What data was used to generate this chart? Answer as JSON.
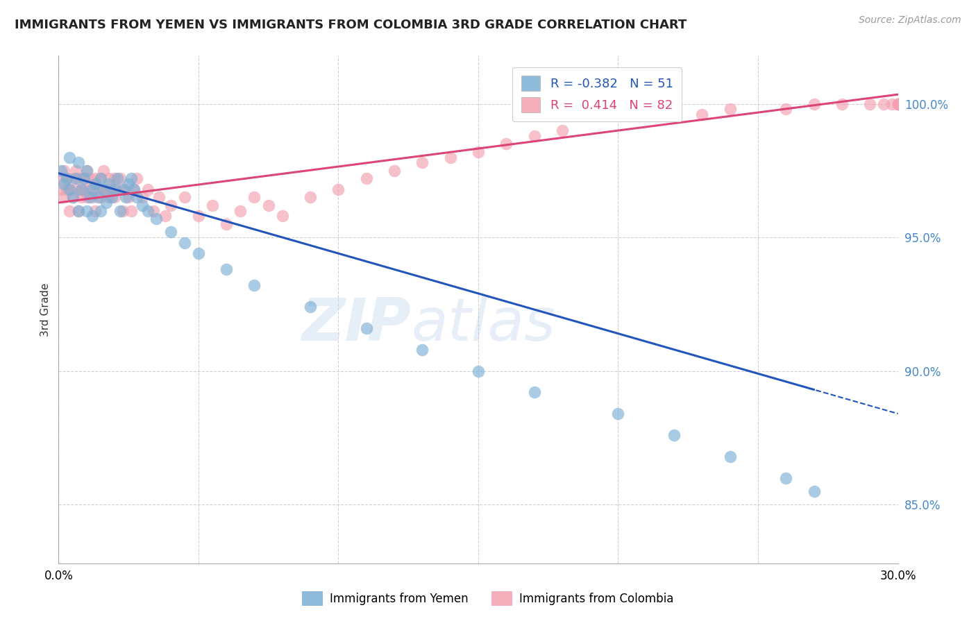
{
  "title": "IMMIGRANTS FROM YEMEN VS IMMIGRANTS FROM COLOMBIA 3RD GRADE CORRELATION CHART",
  "source": "Source: ZipAtlas.com",
  "ylabel": "3rd Grade",
  "xlim": [
    0.0,
    0.3
  ],
  "ylim": [
    0.828,
    1.018
  ],
  "yticks": [
    0.85,
    0.9,
    0.95,
    1.0
  ],
  "ytick_labels": [
    "85.0%",
    "90.0%",
    "95.0%",
    "100.0%"
  ],
  "xticks": [
    0.0,
    0.05,
    0.1,
    0.15,
    0.2,
    0.25,
    0.3
  ],
  "xtick_labels": [
    "0.0%",
    "",
    "",
    "",
    "",
    "",
    "30.0%"
  ],
  "blue_color": "#7bafd4",
  "pink_color": "#f4a0b0",
  "blue_line_color": "#2255bb",
  "pink_line_color": "#dd4477",
  "legend_blue_R": "-0.382",
  "legend_blue_N": "51",
  "legend_pink_R": "0.414",
  "legend_pink_N": "82",
  "blue_scatter_x": [
    0.001,
    0.002,
    0.003,
    0.004,
    0.004,
    0.005,
    0.006,
    0.007,
    0.007,
    0.008,
    0.009,
    0.01,
    0.01,
    0.011,
    0.012,
    0.012,
    0.013,
    0.014,
    0.015,
    0.015,
    0.016,
    0.017,
    0.018,
    0.019,
    0.02,
    0.021,
    0.022,
    0.023,
    0.024,
    0.025,
    0.026,
    0.027,
    0.028,
    0.03,
    0.032,
    0.035,
    0.04,
    0.045,
    0.05,
    0.06,
    0.07,
    0.09,
    0.11,
    0.13,
    0.15,
    0.17,
    0.2,
    0.22,
    0.24,
    0.26,
    0.27
  ],
  "blue_scatter_y": [
    0.975,
    0.97,
    0.972,
    0.968,
    0.98,
    0.965,
    0.972,
    0.978,
    0.96,
    0.968,
    0.972,
    0.975,
    0.96,
    0.965,
    0.968,
    0.958,
    0.97,
    0.965,
    0.972,
    0.96,
    0.968,
    0.963,
    0.97,
    0.965,
    0.968,
    0.972,
    0.96,
    0.968,
    0.965,
    0.97,
    0.972,
    0.968,
    0.965,
    0.962,
    0.96,
    0.957,
    0.952,
    0.948,
    0.944,
    0.938,
    0.932,
    0.924,
    0.916,
    0.908,
    0.9,
    0.892,
    0.884,
    0.876,
    0.868,
    0.86,
    0.855
  ],
  "pink_scatter_x": [
    0.001,
    0.001,
    0.002,
    0.002,
    0.003,
    0.003,
    0.004,
    0.004,
    0.005,
    0.005,
    0.006,
    0.006,
    0.007,
    0.007,
    0.008,
    0.008,
    0.009,
    0.009,
    0.01,
    0.01,
    0.011,
    0.011,
    0.012,
    0.012,
    0.013,
    0.013,
    0.014,
    0.015,
    0.015,
    0.016,
    0.016,
    0.017,
    0.018,
    0.018,
    0.019,
    0.02,
    0.02,
    0.021,
    0.022,
    0.023,
    0.024,
    0.025,
    0.026,
    0.027,
    0.028,
    0.03,
    0.032,
    0.034,
    0.036,
    0.038,
    0.04,
    0.045,
    0.05,
    0.055,
    0.06,
    0.065,
    0.07,
    0.075,
    0.08,
    0.09,
    0.1,
    0.11,
    0.12,
    0.13,
    0.14,
    0.15,
    0.16,
    0.17,
    0.18,
    0.21,
    0.23,
    0.24,
    0.26,
    0.27,
    0.28,
    0.29,
    0.295,
    0.298,
    0.3,
    0.3,
    0.3,
    0.3
  ],
  "pink_scatter_y": [
    0.972,
    0.968,
    0.975,
    0.965,
    0.968,
    0.972,
    0.968,
    0.96,
    0.972,
    0.965,
    0.975,
    0.968,
    0.972,
    0.96,
    0.968,
    0.965,
    0.972,
    0.968,
    0.975,
    0.965,
    0.968,
    0.972,
    0.968,
    0.965,
    0.972,
    0.96,
    0.968,
    0.972,
    0.965,
    0.968,
    0.975,
    0.968,
    0.972,
    0.965,
    0.968,
    0.972,
    0.965,
    0.968,
    0.972,
    0.96,
    0.968,
    0.965,
    0.96,
    0.968,
    0.972,
    0.965,
    0.968,
    0.96,
    0.965,
    0.958,
    0.962,
    0.965,
    0.958,
    0.962,
    0.955,
    0.96,
    0.965,
    0.962,
    0.958,
    0.965,
    0.968,
    0.972,
    0.975,
    0.978,
    0.98,
    0.982,
    0.985,
    0.988,
    0.99,
    0.998,
    0.996,
    0.998,
    0.998,
    1.0,
    1.0,
    1.0,
    1.0,
    1.0,
    1.0,
    1.0,
    1.0,
    1.0
  ],
  "blue_line_start_x": 0.0,
  "blue_line_end_x": 0.3,
  "blue_line_solid_end_x": 0.27,
  "blue_intercept": 0.974,
  "blue_slope": -0.3,
  "pink_intercept": 0.963,
  "pink_slope": 0.135
}
